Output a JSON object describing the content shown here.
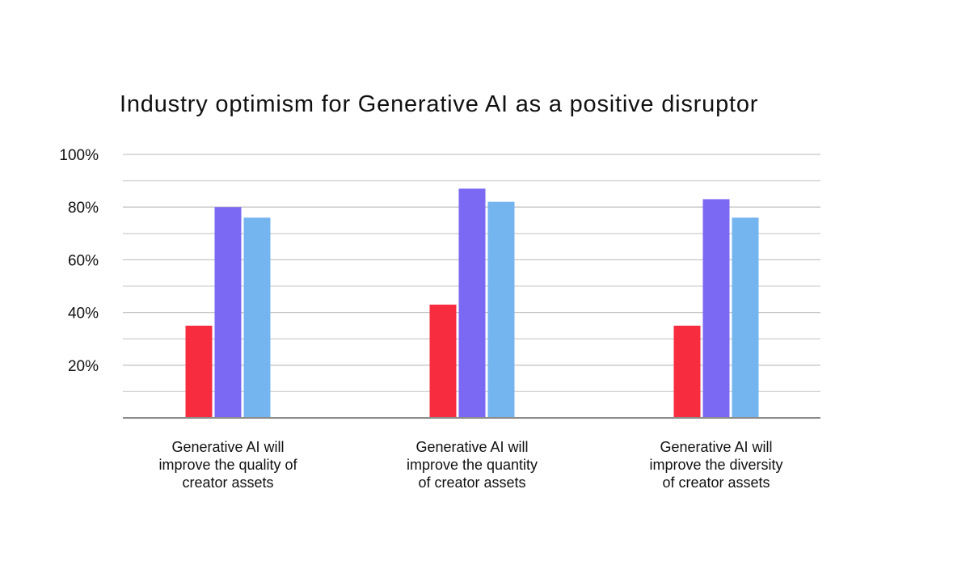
{
  "chart_data": {
    "type": "bar",
    "title": "Industry optimism for Generative AI as a positive disruptor",
    "xlabel": "",
    "ylabel": "",
    "categories": [
      [
        "Generative AI will",
        "improve the quality of",
        "creator assets"
      ],
      [
        "Generative AI will",
        "improve the quantity",
        "of creator assets"
      ],
      [
        "Generative AI will",
        "improve the diversity",
        "of creator assets"
      ]
    ],
    "series": [
      {
        "color": "#f72d3f",
        "values": [
          35,
          43,
          35
        ]
      },
      {
        "color": "#7b68f3",
        "values": [
          80,
          87,
          83
        ]
      },
      {
        "color": "#74b4ef",
        "values": [
          76,
          82,
          76
        ]
      }
    ],
    "ylim": [
      0,
      100
    ],
    "y_ticks": [
      20,
      40,
      60,
      80,
      100
    ],
    "y_tick_labels": [
      "20%",
      "40%",
      "60%",
      "80%",
      "100%"
    ],
    "grid": true,
    "legend": "none"
  }
}
